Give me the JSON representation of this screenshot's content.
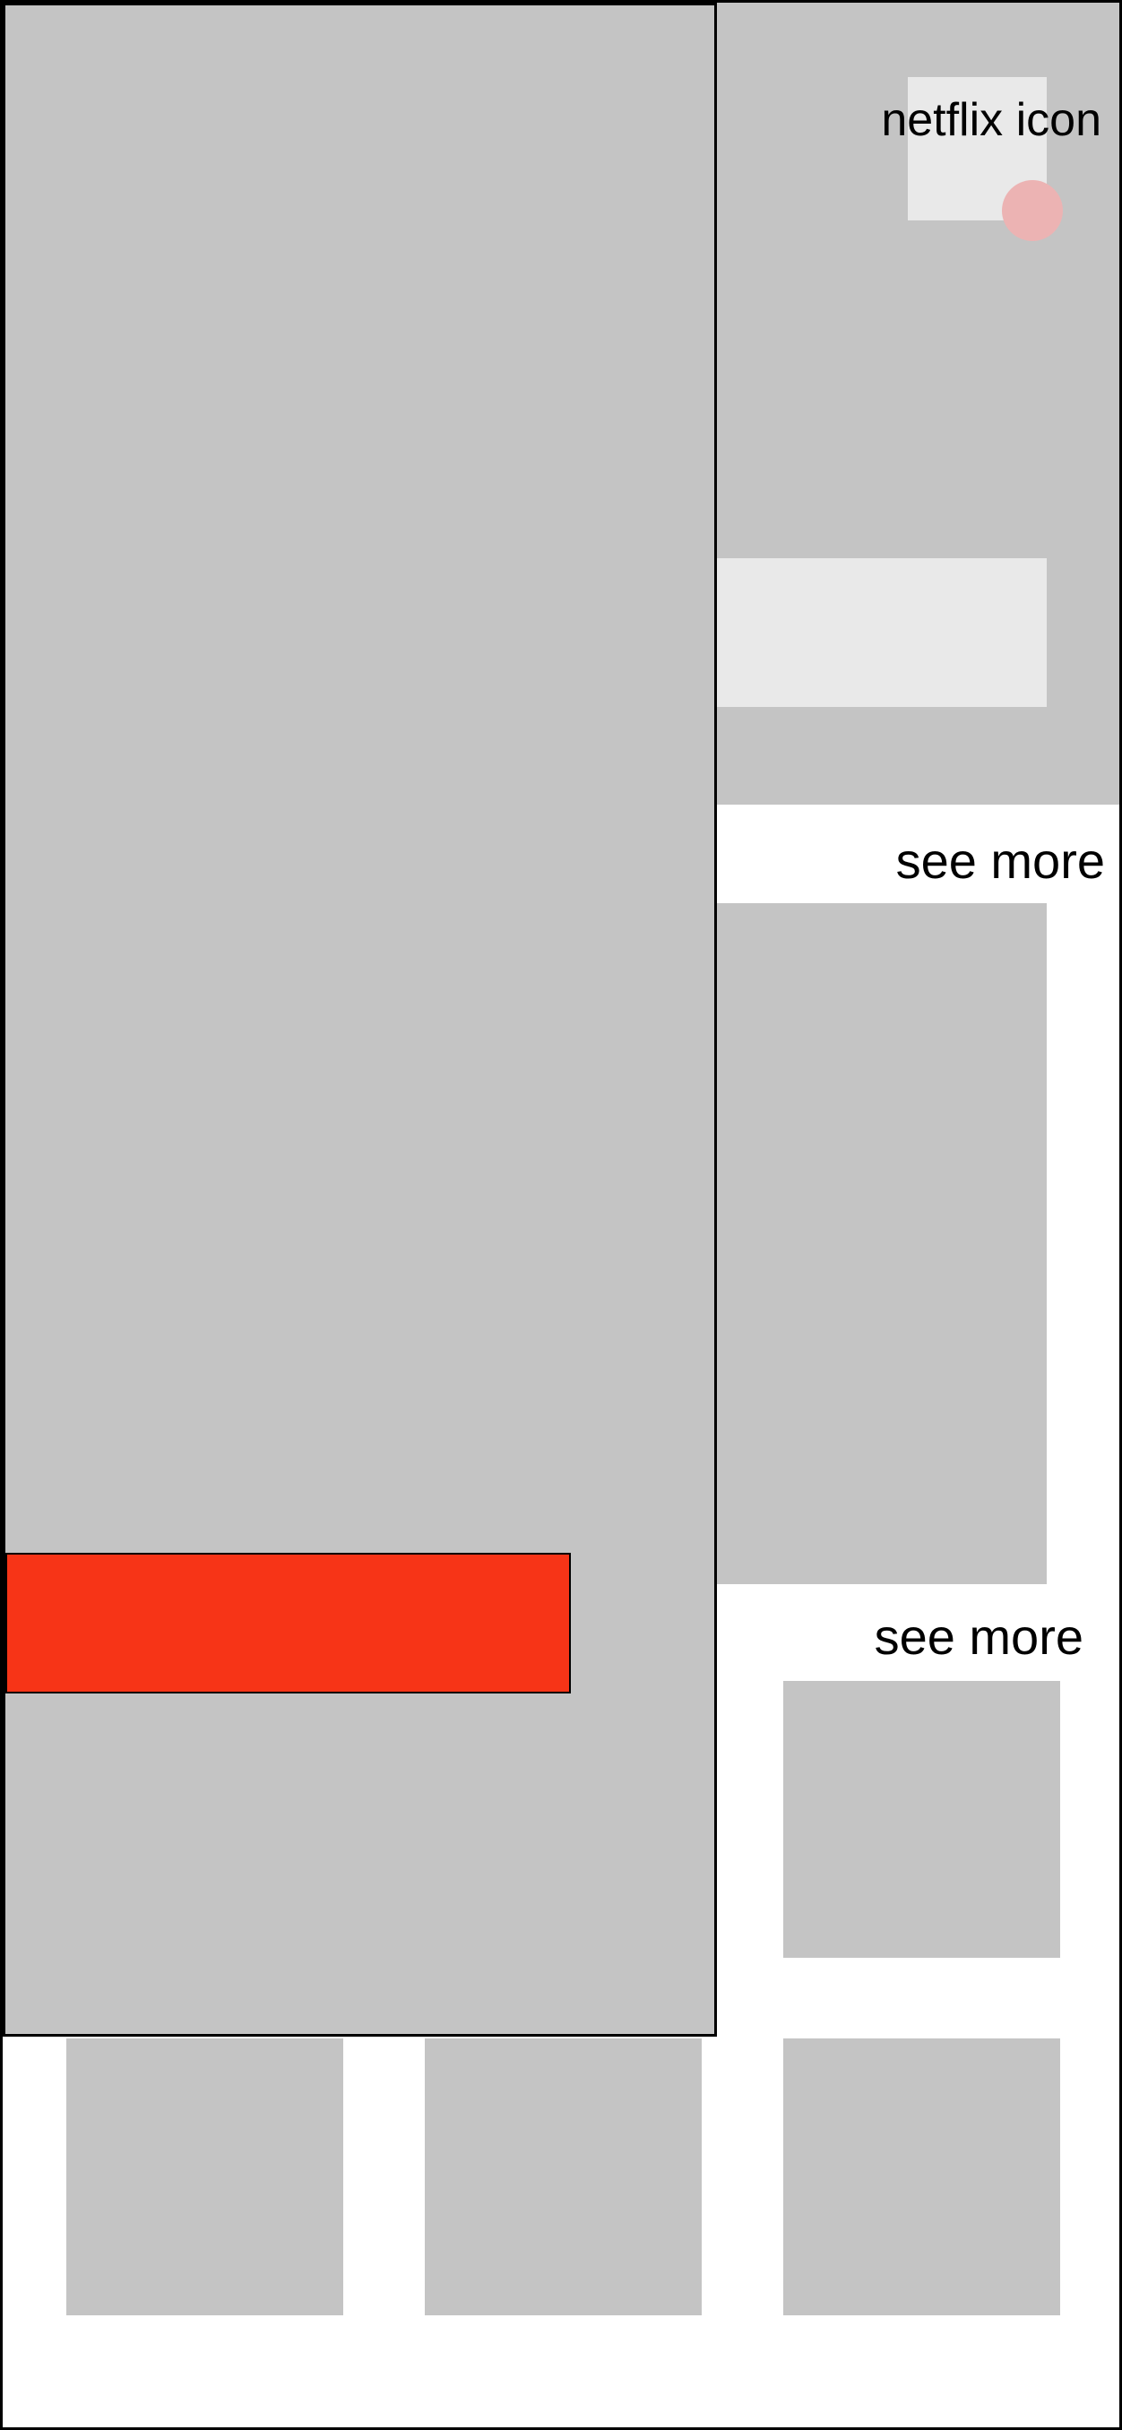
{
  "header": {
    "logo_label": "netflix icon",
    "logo_icon": "netflix-icon"
  },
  "sections": [
    {
      "see_more_label": "see more"
    },
    {
      "see_more_label": "see more"
    }
  ],
  "colors": {
    "accent_button": "#f73417",
    "notification_dot": "#ecb3b3",
    "placeholder": "#c4c4c4",
    "placeholder_light": "#e9e9e9"
  }
}
